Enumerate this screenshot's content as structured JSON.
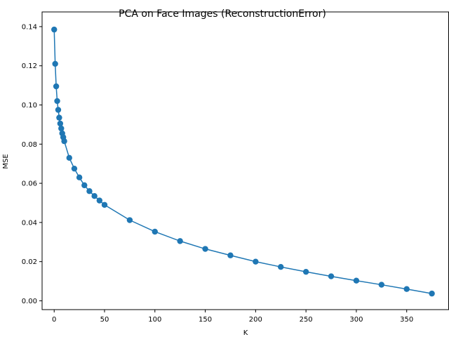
{
  "chart_data": {
    "type": "line",
    "title": "PCA on Face Images (ReconstructionError)",
    "xlabel": "K",
    "ylabel": "MSE",
    "xlim": [
      -12,
      392
    ],
    "ylim": [
      -0.0045,
      0.1475
    ],
    "x_ticks": [
      0,
      50,
      100,
      150,
      200,
      250,
      300,
      350
    ],
    "y_ticks": [
      0.0,
      0.02,
      0.04,
      0.06,
      0.08,
      0.1,
      0.12,
      0.14
    ],
    "y_tick_labels": [
      "0.00",
      "0.02",
      "0.04",
      "0.06",
      "0.08",
      "0.10",
      "0.12",
      "0.14"
    ],
    "grid": false,
    "series": [
      {
        "color": "#1f77b4",
        "marker": "circle",
        "x": [
          0,
          1,
          2,
          3,
          4,
          5,
          6,
          7,
          8,
          9,
          10,
          15,
          20,
          25,
          30,
          35,
          40,
          45,
          50,
          75,
          100,
          125,
          150,
          175,
          200,
          225,
          250,
          275,
          300,
          325,
          350,
          375
        ],
        "y": [
          0.1385,
          0.121,
          0.1095,
          0.102,
          0.0975,
          0.0935,
          0.0905,
          0.088,
          0.0855,
          0.0835,
          0.0815,
          0.073,
          0.0675,
          0.063,
          0.059,
          0.056,
          0.0535,
          0.0512,
          0.049,
          0.0412,
          0.0353,
          0.0305,
          0.0265,
          0.0232,
          0.02,
          0.0173,
          0.0148,
          0.0125,
          0.0103,
          0.0082,
          0.006,
          0.0037
        ]
      }
    ]
  }
}
